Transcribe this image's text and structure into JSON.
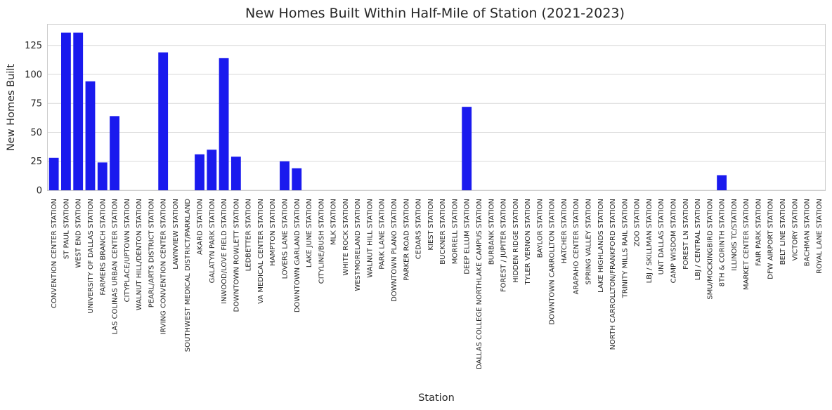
{
  "chart_data": {
    "type": "bar",
    "title": "New Homes Built Within Half-Mile of Station (2021-2023)",
    "xlabel": "Station",
    "ylabel": "New Homes Built",
    "ylim": [
      0,
      143
    ],
    "yticks": [
      0,
      25,
      50,
      75,
      100,
      125
    ],
    "grid": "horizontal",
    "bar_color": "#1a1aee",
    "categories": [
      "CONVENTION CENTER STATION",
      "ST PAUL STATION",
      "WEST END STATION",
      "UNIVERSITY OF DALLAS STATION",
      "FARMERS BRANCH STATION",
      "LAS COLINAS URBAN CENTER STATION",
      "CITYPLACE/UPTOWN STATION",
      "WALNUT HILL/DENTON STATION",
      "PEARL/ARTS DISTRICT STATION",
      "IRVING CONVENTION CENTER STATION",
      "LAWNVIEW STATION",
      "SOUTHWEST MEDICAL DISTRICT/PARKLAND",
      "AKARD STATION",
      "GALATYN PARK STATION",
      "INWOOD/LOVE FIELD STATION",
      "DOWNTOWN ROWLETT STATION",
      "LEDBETTER STATION",
      "VA MEDICAL CENTER STATION",
      "HAMPTON STATION",
      "LOVERS LANE STATION",
      "DOWNTOWN GARLAND STATION",
      "LAKE JUNE STATION",
      "CITYLINE/BUSH STATION",
      "MLK STATION",
      "WHITE ROCK STATION",
      "WESTMORELAND STATION",
      "WALNUT HILL STATION",
      "PARK LANE STATION",
      "DOWNTOWN PLANO STATION",
      "PARKER ROAD STATION",
      "CEDARS STATION",
      "KIEST STATION",
      "BUCKNER STATION",
      "MORRELL STATION",
      "DEEP ELLUM STATION",
      "DALLAS COLLEGE NORTHLAKE CAMPUS STATION",
      "BURBANK STATION",
      "FOREST / JUPITER STATION",
      "HIDDEN RIDGE STATION",
      "TYLER VERNON STATION",
      "BAYLOR STATION",
      "DOWNTOWN CARROLLTON STATION",
      "HATCHER STATION",
      "ARAPAHO CENTER STATION",
      "SPRING VALLEY STATION",
      "LAKE HIGHLANDS STATION",
      "NORTH CARROLLTON/FRANKFORD STATION",
      "TRINITY MILLS RAIL STATION",
      "ZOO STATION",
      "LBJ / SKILLMAN STATION",
      "UNT DALLAS STATION",
      "CAMP WISDOM STATION",
      "FOREST LN STATION",
      "LBJ / CENTRAL STATION",
      "SMU/MOCKINGBIRD STATION",
      "8TH & CORINTH STATION",
      "ILLINOIS TC/STATION",
      "MARKET CENTER STATION",
      "FAIR PARK STATION",
      "DFW AIRPORT STATION",
      "BELT LINE STATION",
      "VICTORY STATION",
      "BACHMAN STATION",
      "ROYAL LANE STATION"
    ],
    "values": [
      28,
      136,
      136,
      94,
      24,
      64,
      0,
      0,
      0,
      119,
      0,
      0,
      31,
      35,
      114,
      29,
      0,
      0,
      0,
      25,
      19,
      0,
      0,
      0,
      0,
      0,
      0,
      0,
      0,
      0,
      0,
      0,
      0,
      0,
      72,
      0,
      0,
      0,
      0,
      0,
      0,
      0,
      0,
      0,
      0,
      0,
      0,
      0,
      0,
      0,
      0,
      0,
      0,
      0,
      0,
      13,
      0,
      0,
      0,
      0,
      0,
      0,
      0,
      0
    ]
  }
}
